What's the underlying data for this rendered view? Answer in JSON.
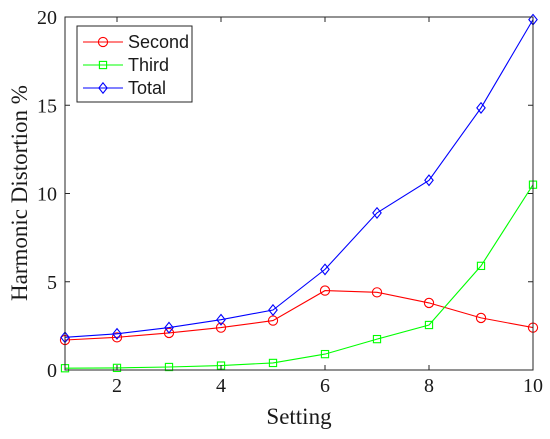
{
  "chart_data": {
    "type": "line",
    "xlabel": "Setting",
    "ylabel": "Harmonic Distortion %",
    "xlim": [
      1,
      10
    ],
    "ylim": [
      0,
      20
    ],
    "xticks": [
      2,
      4,
      6,
      8,
      10
    ],
    "yticks": [
      0,
      5,
      10,
      15,
      20
    ],
    "grid": false,
    "legend_position": "top-left",
    "x": [
      1,
      2,
      3,
      4,
      5,
      6,
      7,
      8,
      9,
      10
    ],
    "series": [
      {
        "name": "Second",
        "color": "#ff0000",
        "marker": "circle",
        "values": [
          1.7,
          1.85,
          2.1,
          2.4,
          2.8,
          4.5,
          4.4,
          3.8,
          2.95,
          2.4
        ]
      },
      {
        "name": "Third",
        "color": "#00ff00",
        "marker": "square",
        "values": [
          0.1,
          0.12,
          0.17,
          0.25,
          0.4,
          0.9,
          1.75,
          2.55,
          5.9,
          10.5
        ]
      },
      {
        "name": "Total",
        "color": "#0000ff",
        "marker": "diamond",
        "values": [
          1.85,
          2.05,
          2.4,
          2.85,
          3.4,
          5.7,
          8.9,
          10.75,
          14.85,
          19.85
        ]
      }
    ]
  }
}
